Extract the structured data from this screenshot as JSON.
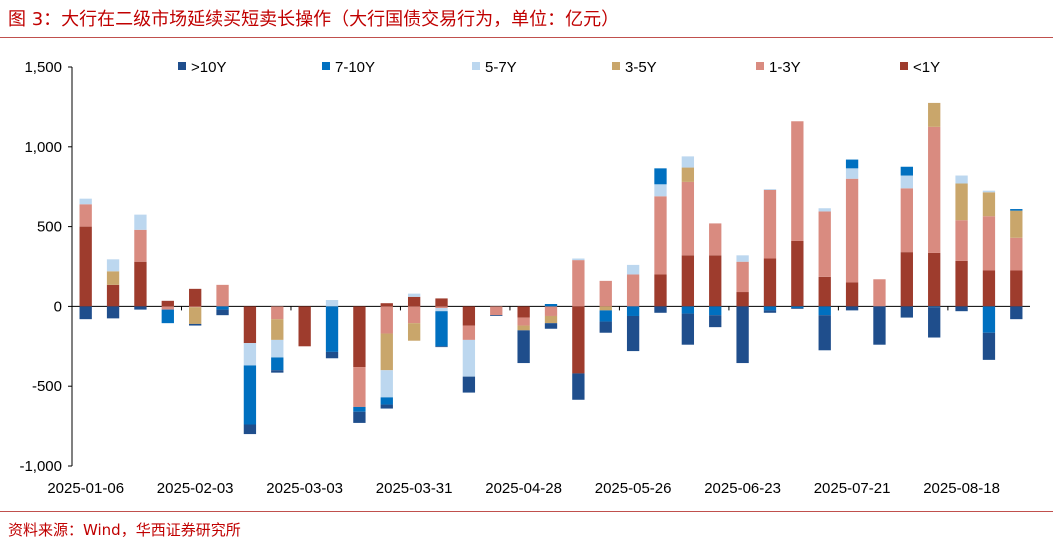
{
  "header": {
    "title": "图 3：大行在二级市场延续买短卖长操作（大行国债交易行为，单位：亿元）"
  },
  "footer": {
    "source": "资料来源：Wind，华西证券研究所"
  },
  "chart_data": {
    "type": "bar",
    "stacked": true,
    "title": "",
    "xlabel": "",
    "ylabel": "",
    "ylim": [
      -1000,
      1500
    ],
    "yticks": [
      "1,500",
      "1,000",
      "500",
      "0",
      "-500",
      "-1,000"
    ],
    "ytick_values": [
      1500,
      1000,
      500,
      0,
      -500,
      -1000
    ],
    "xtick_labels": [
      "2025-01-06",
      "2025-02-03",
      "2025-03-03",
      "2025-03-31",
      "2025-04-28",
      "2025-05-26",
      "2025-06-23",
      "2025-07-21",
      "2025-08-18"
    ],
    "xtick_positions": [
      0,
      4,
      8,
      12,
      16,
      20,
      24,
      28,
      32
    ],
    "categories": [
      "2025-01-06",
      "2025-01-13",
      "2025-01-20",
      "2025-01-27",
      "2025-02-03",
      "2025-02-10",
      "2025-02-17",
      "2025-02-24",
      "2025-03-03",
      "2025-03-10",
      "2025-03-17",
      "2025-03-24",
      "2025-03-31",
      "2025-04-07",
      "2025-04-14",
      "2025-04-21",
      "2025-04-28",
      "2025-05-05",
      "2025-05-12",
      "2025-05-19",
      "2025-05-26",
      "2025-06-02",
      "2025-06-09",
      "2025-06-16",
      "2025-06-23",
      "2025-06-30",
      "2025-07-07",
      "2025-07-14",
      "2025-07-21",
      "2025-07-28",
      "2025-08-04",
      "2025-08-11",
      "2025-08-18",
      "2025-08-25",
      "2025-09-01"
    ],
    "legend": {
      "position": "top",
      "order": [
        ">10Y",
        "7-10Y",
        "5-7Y",
        "3-5Y",
        "1-3Y",
        "<1Y"
      ]
    },
    "series": [
      {
        "name": "<1Y",
        "color": "#9e3c2d",
        "values": [
          500,
          135,
          280,
          35,
          110,
          0,
          -230,
          0,
          -250,
          0,
          -380,
          20,
          60,
          50,
          -120,
          0,
          -70,
          0,
          -420,
          0,
          0,
          200,
          320,
          320,
          90,
          300,
          410,
          185,
          150,
          0,
          340,
          335,
          285,
          225,
          225
        ]
      },
      {
        "name": "1-3Y",
        "color": "#d98b80",
        "values": [
          140,
          0,
          200,
          -20,
          -5,
          135,
          0,
          -80,
          0,
          0,
          -250,
          -170,
          -105,
          -10,
          -90,
          -55,
          -50,
          -60,
          290,
          160,
          200,
          490,
          460,
          200,
          190,
          430,
          750,
          410,
          650,
          170,
          400,
          790,
          255,
          340,
          205
        ]
      },
      {
        "name": "3-5Y",
        "color": "#c9a66b",
        "values": [
          0,
          85,
          0,
          0,
          -105,
          0,
          0,
          -130,
          0,
          0,
          0,
          -230,
          -110,
          0,
          0,
          0,
          -30,
          -45,
          0,
          -25,
          0,
          0,
          90,
          0,
          0,
          0,
          0,
          0,
          0,
          0,
          0,
          150,
          230,
          150,
          170
        ]
      },
      {
        "name": "5-7Y",
        "color": "#bcd7ef",
        "values": [
          35,
          75,
          95,
          0,
          0,
          0,
          -140,
          -110,
          0,
          40,
          0,
          -170,
          20,
          -20,
          -230,
          0,
          0,
          0,
          10,
          0,
          60,
          75,
          70,
          0,
          40,
          5,
          0,
          20,
          65,
          0,
          80,
          0,
          50,
          10,
          0
        ]
      },
      {
        "name": "7-10Y",
        "color": "#0070c0",
        "values": [
          0,
          0,
          0,
          -85,
          0,
          -20,
          -370,
          -80,
          0,
          -285,
          -30,
          -45,
          0,
          -220,
          0,
          0,
          0,
          15,
          0,
          -70,
          -60,
          100,
          -45,
          -55,
          0,
          -25,
          -10,
          -55,
          55,
          0,
          55,
          -5,
          0,
          -165,
          10
        ]
      },
      {
        "name": ">10Y",
        "color": "#1f4e8c",
        "values": [
          -80,
          -75,
          -20,
          0,
          -10,
          -35,
          -60,
          -15,
          0,
          -40,
          -70,
          -25,
          0,
          -5,
          -100,
          -5,
          -205,
          -35,
          -165,
          -70,
          -220,
          -40,
          -195,
          -75,
          -355,
          -15,
          -5,
          -220,
          -25,
          -240,
          -70,
          -190,
          -30,
          -170,
          -80
        ]
      }
    ]
  }
}
